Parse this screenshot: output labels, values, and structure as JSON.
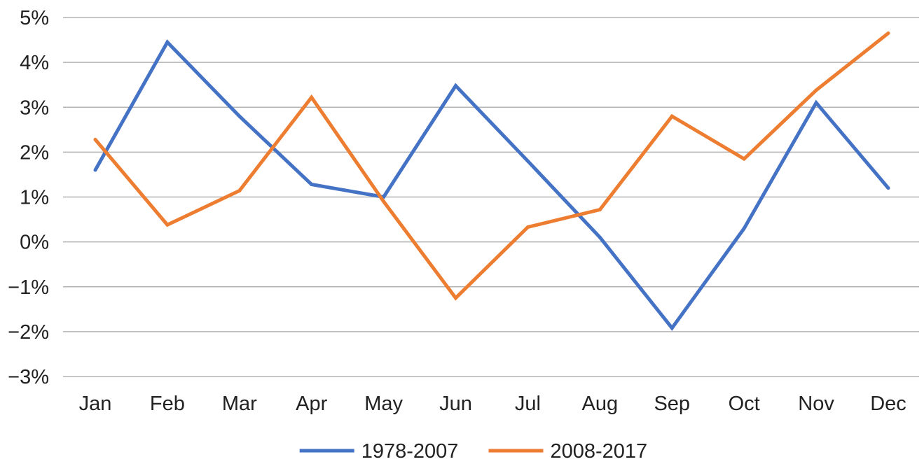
{
  "chart_data": {
    "type": "line",
    "title": "",
    "xlabel": "",
    "ylabel": "",
    "categories": [
      "Jan",
      "Feb",
      "Mar",
      "Apr",
      "May",
      "Jun",
      "Jul",
      "Aug",
      "Sep",
      "Oct",
      "Nov",
      "Dec"
    ],
    "ylim": [
      -3,
      5
    ],
    "yticks": [
      -3,
      -2,
      -1,
      0,
      1,
      2,
      3,
      4,
      5
    ],
    "ytick_labels": [
      "−3%",
      "−2%",
      "−1%",
      "0%",
      "1%",
      "2%",
      "3%",
      "4%",
      "5%"
    ],
    "grid": true,
    "legend_position": "bottom",
    "series": [
      {
        "name": "1978-2007",
        "color": "#4472c4",
        "values": [
          1.6,
          4.45,
          2.8,
          1.28,
          1.0,
          3.48,
          1.8,
          0.1,
          -1.92,
          0.3,
          3.1,
          1.2
        ]
      },
      {
        "name": "2008-2017",
        "color": "#ed7d31",
        "values": [
          2.28,
          0.38,
          1.14,
          3.22,
          0.9,
          -1.25,
          0.33,
          0.72,
          2.8,
          1.85,
          3.38,
          4.65
        ]
      }
    ]
  }
}
